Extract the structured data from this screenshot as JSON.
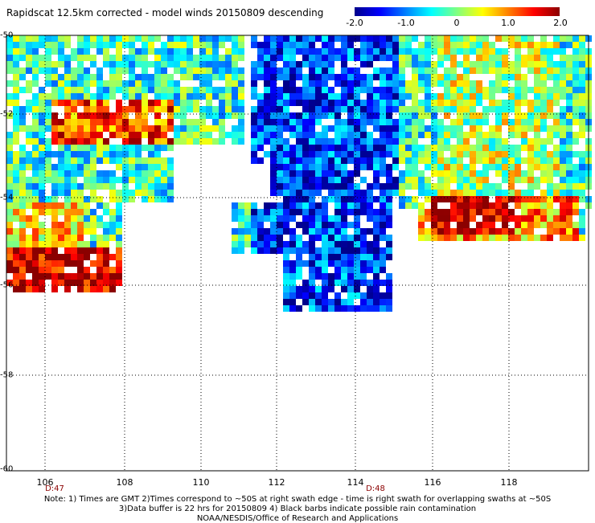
{
  "title": "Rapidscat 12.5km corrected - model winds 20150809 descending",
  "colorbar": {
    "ticks": [
      "-2.0",
      "-1.0",
      "0",
      "1.0",
      "2.0"
    ],
    "values": [
      -2.0,
      -1.0,
      0,
      1.0,
      2.0
    ],
    "colors": [
      "#00008b",
      "#0000ff",
      "#0080ff",
      "#00ffff",
      "#80ff80",
      "#ffff00",
      "#ff8000",
      "#ff0000",
      "#8b0000"
    ]
  },
  "map": {
    "lat_labels": [
      "-50",
      "-52",
      "-54",
      "-56",
      "-58",
      "-60"
    ],
    "lat_values": [
      -50,
      -52,
      -54,
      -56,
      -58,
      -60
    ],
    "lon_labels": [
      "106",
      "108",
      "110",
      "112",
      "114",
      "116",
      "118"
    ],
    "lon_values": [
      106,
      108,
      110,
      112,
      114,
      116,
      118
    ],
    "lon_range": [
      105.3,
      120
    ],
    "lat_range": [
      -60,
      -50
    ],
    "grid": true,
    "time_labels": [
      {
        "text": "D:47",
        "lon": 106.2
      },
      {
        "text": "D:48",
        "lon": 114.3
      }
    ]
  },
  "notes": [
    "Note: 1) Times are GMT 2)Times correspond to ~50S at right swath edge - time is right swath for overlapping swaths at ~50S",
    "3)Data buffer is 22 hrs for 20150809 4) Black barbs indicate possible rain contamination",
    "NOAA/NESDIS/Office of Research and Applications"
  ]
}
